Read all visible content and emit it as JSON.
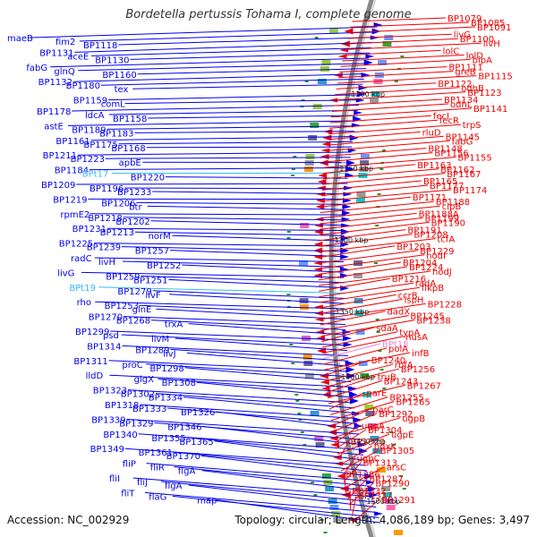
{
  "title": "Bordetella pertussis Tohama I, complete genome",
  "footer": {
    "accession": "Accession: NC_002929",
    "topology": "Topology: circular; Length: 4,086,189 bp; Genes: 3,497"
  },
  "colors": {
    "forward_strand": "#0000ee",
    "reverse_strand": "#ee0000",
    "rna_forward": "#33bbee",
    "rna_reverse": "#ee88dd",
    "backbone": "#888888",
    "gc_marker": "#229922"
  },
  "kbp_ticks": [
    "1200 kbp",
    "1250 kbp",
    "1300 kbp",
    "1350 kbp",
    "1400 kbp",
    "1450 kbp",
    "1500 kbp"
  ],
  "left_labels": [
    "maeB",
    "fim2",
    "BP1118",
    "BP1131",
    "aceE",
    "BP1130",
    "fabG",
    "glnQ",
    "BP1160",
    "BP1132",
    "BP1180",
    "tex",
    "1200 kbp",
    "BP1159",
    "comL",
    "BP1178",
    "ldcA",
    "BP1158",
    "astE",
    "BP1189",
    "BP1183",
    "BP1161",
    "BP1175",
    "BP1168",
    "BP1211",
    "BP1223",
    "apbE",
    "BP1184",
    "BPt17",
    "BP1220",
    "BP1209",
    "BP1196",
    "BP1233",
    "BP1219",
    "BP1206",
    "btr",
    "rpmE2",
    "BP1218",
    "BP1202",
    "BP1231",
    "BP1213",
    "norM",
    "BP1225",
    "BP1239",
    "BP1257",
    "radC",
    "livH",
    "BP1252",
    "livG",
    "BP1259",
    "BP1251",
    "BPt19",
    "BP1279",
    "livF",
    "rho",
    "BP1253",
    "glnE",
    "BP1270",
    "BP1268",
    "trxA",
    "BP1299",
    "psd",
    "livM",
    "BP1314",
    "BP1289",
    "livJ",
    "BP1311",
    "proC",
    "BP1298",
    "lldD",
    "glgX",
    "BP1308",
    "BP1323",
    "BP1302",
    "BP1334",
    "BP1318",
    "BP1333",
    "BP1326",
    "BP1339",
    "BP1329",
    "BP1346",
    "BP1340",
    "BP1355",
    "BP1365",
    "BP1349",
    "BP1361",
    "BP1370",
    "fliP",
    "fliR",
    "flgA",
    "fliI",
    "fliJ",
    "flgA",
    "fliT",
    "flaG",
    "map"
  ],
  "right_labels": [
    "BP1079",
    "BP1085",
    "BP1091",
    "livG",
    "BP1100",
    "livH",
    "lolC",
    "lolD",
    "bipA",
    "BP1111",
    "greB",
    "BP1115",
    "BP1122",
    "odhB",
    "BP1123",
    "BP1134",
    "odhL",
    "BP1141",
    "fecI",
    "fecR",
    "trpS",
    "rluD",
    "BP1145",
    "fabG",
    "BP1148",
    "BP1156",
    "BP1155",
    "BP1163",
    "BP1162",
    "BP1167",
    "BP1165",
    "BP1177",
    "BP1174",
    "BP1171",
    "BP1188",
    "clpB",
    "BP1188A",
    "BP1199",
    "BP1190",
    "BP1191",
    "BP1208",
    "tcfA",
    "BP1203",
    "BP1229",
    "nodI",
    "BP1204",
    "BP1224",
    "nodJ",
    "BP1216",
    "radA",
    "flkpB",
    "ccrB",
    "ispH",
    "BP1228",
    "dadX",
    "BP1245",
    "BP1238",
    "sdaA",
    "typA",
    "nusA",
    "BPt18",
    "polA",
    "infB",
    "BP1240",
    "rbfA",
    "BP1256",
    "truB",
    "BP1243",
    "BP1267",
    "parE",
    "BP1255",
    "BP1265",
    "parC",
    "BP1292",
    "ugpB",
    "ugpA",
    "BP1304",
    "ugpE",
    "BP1320",
    "pdxK",
    "BP1305",
    "ugpC",
    "BP1313",
    "arsC",
    "BP1286",
    "BP1287",
    "BP1290",
    "BP1332",
    "BP1337",
    "BP1291"
  ]
}
